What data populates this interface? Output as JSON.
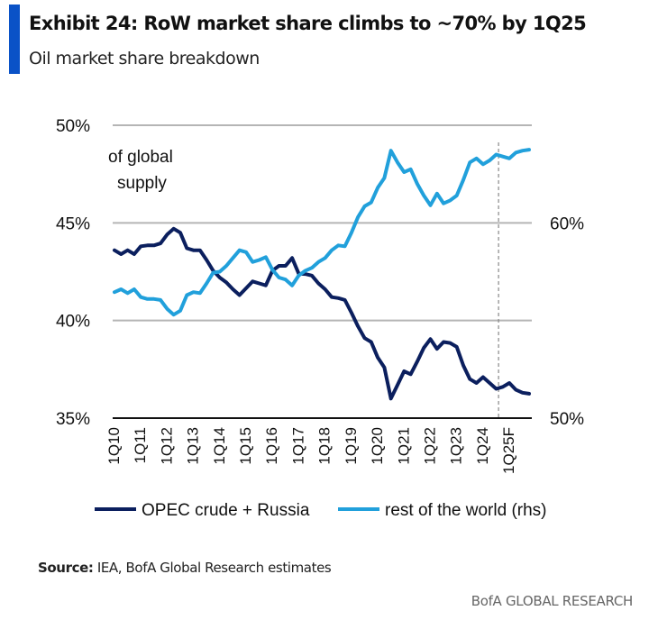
{
  "header": {
    "title": "Exhibit 24: RoW market share climbs to ~70% by 1Q25",
    "subtitle": "Oil market share breakdown"
  },
  "chart_data": {
    "type": "line",
    "annotation": "of global supply",
    "annotation_lines": [
      "of global",
      "supply"
    ],
    "x_tick_labels": [
      "1Q10",
      "1Q11",
      "1Q12",
      "1Q13",
      "1Q14",
      "1Q15",
      "1Q16",
      "1Q17",
      "1Q18",
      "1Q19",
      "1Q20",
      "1Q21",
      "1Q22",
      "1Q23",
      "1Q24",
      "1Q25F"
    ],
    "x_start": "1Q10",
    "x_end": "4Q25",
    "x_frequency": "quarterly",
    "forecast_marker": "1Q25",
    "y_left": {
      "ticks": [
        "35%",
        "40%",
        "45%",
        "50%"
      ],
      "range": [
        35,
        50
      ]
    },
    "y_right": {
      "ticks": [
        "50%",
        "60%"
      ],
      "range": [
        50,
        65
      ]
    },
    "grid": true,
    "legend_position": "bottom",
    "series": [
      {
        "name": "OPEC crude + Russia",
        "axis": "left",
        "color": "#0b1f5e",
        "values": [
          43.6,
          43.4,
          43.6,
          43.4,
          43.8,
          43.85,
          43.85,
          43.95,
          44.4,
          44.7,
          44.5,
          43.7,
          43.6,
          43.6,
          43.1,
          42.55,
          42.2,
          41.95,
          41.6,
          41.3,
          41.65,
          42.0,
          41.9,
          41.8,
          42.55,
          42.8,
          42.8,
          43.2,
          42.4,
          42.38,
          42.3,
          41.9,
          41.6,
          41.2,
          41.15,
          41.05,
          40.4,
          39.7,
          39.1,
          38.9,
          38.1,
          37.6,
          36.0,
          36.7,
          37.4,
          37.25,
          37.9,
          38.6,
          39.05,
          38.55,
          38.9,
          38.85,
          38.65,
          37.7,
          37.0,
          36.8,
          37.1,
          36.8,
          36.5,
          36.6,
          36.8,
          36.45,
          36.3,
          36.25
        ]
      },
      {
        "name": "rest of the world (rhs)",
        "axis": "right",
        "color": "#21a0db",
        "values": [
          56.45,
          56.6,
          56.4,
          56.6,
          56.2,
          56.1,
          56.1,
          56.05,
          55.6,
          55.3,
          55.5,
          56.3,
          56.45,
          56.4,
          56.9,
          57.45,
          57.5,
          57.8,
          58.2,
          58.6,
          58.5,
          58.0,
          58.1,
          58.25,
          57.6,
          57.2,
          57.1,
          56.8,
          57.3,
          57.55,
          57.7,
          58.0,
          58.2,
          58.6,
          58.85,
          58.8,
          59.5,
          60.3,
          60.85,
          61.05,
          61.8,
          62.3,
          63.7,
          63.1,
          62.6,
          62.75,
          62.0,
          61.4,
          60.9,
          61.5,
          61.0,
          61.15,
          61.4,
          62.2,
          63.1,
          63.3,
          63.0,
          63.2,
          63.5,
          63.4,
          63.3,
          63.6,
          63.7,
          63.75
        ]
      }
    ]
  },
  "footer": {
    "source_label": "Source:",
    "source_text": " IEA, BofA Global Research estimates",
    "brand": "BofA GLOBAL RESEARCH"
  }
}
